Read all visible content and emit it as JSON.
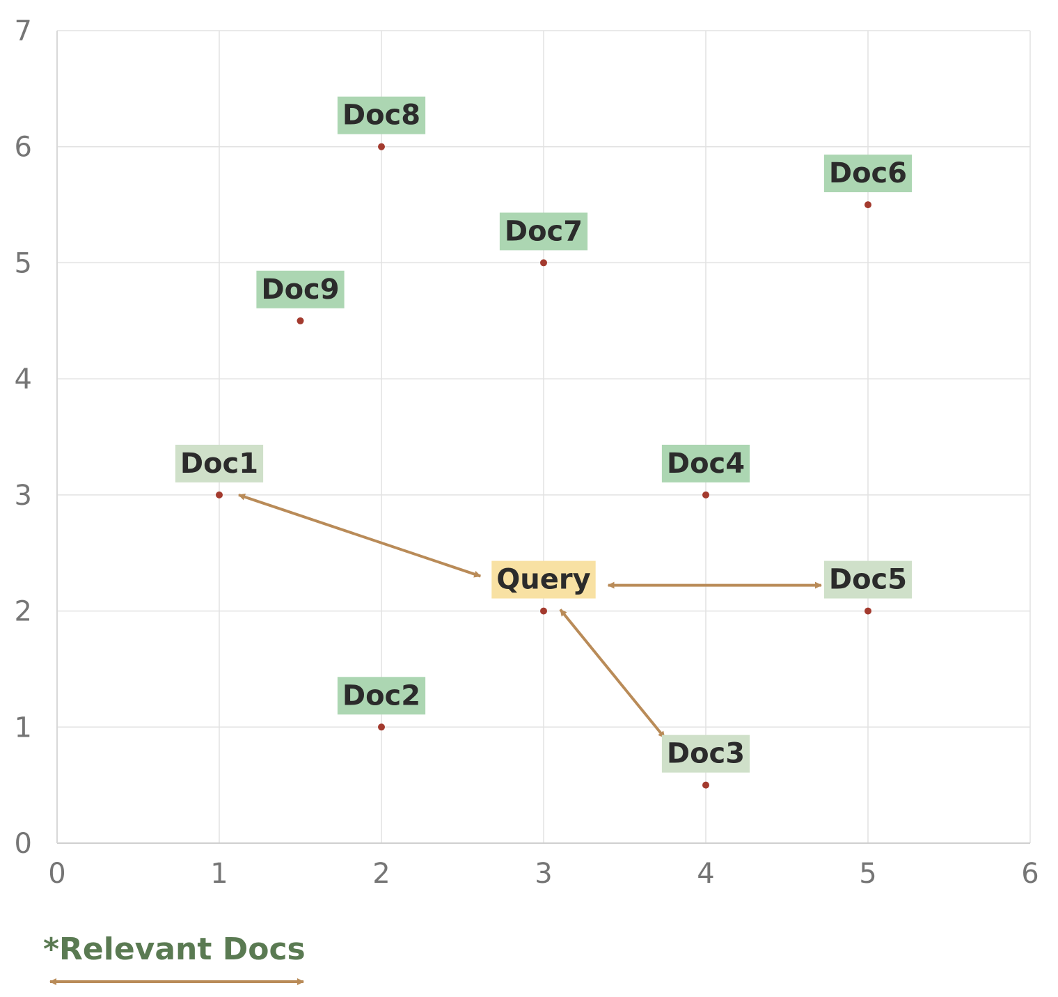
{
  "chart_data": {
    "type": "scatter",
    "title": "",
    "xlabel": "",
    "ylabel": "",
    "xlim": [
      0,
      6
    ],
    "ylim": [
      0,
      7
    ],
    "x_ticks": [
      "0",
      "1",
      "2",
      "3",
      "4",
      "5",
      "6"
    ],
    "y_ticks": [
      "0",
      "1",
      "2",
      "3",
      "4",
      "5",
      "6",
      "7"
    ],
    "grid": true,
    "points": [
      {
        "label": "Doc8",
        "x": 2,
        "y": 6,
        "kind": "doc"
      },
      {
        "label": "Doc6",
        "x": 5,
        "y": 5.5,
        "kind": "doc"
      },
      {
        "label": "Doc7",
        "x": 3,
        "y": 5,
        "kind": "doc"
      },
      {
        "label": "Doc9",
        "x": 1.5,
        "y": 4.5,
        "kind": "doc"
      },
      {
        "label": "Doc1",
        "x": 1,
        "y": 3,
        "kind": "relevant"
      },
      {
        "label": "Doc4",
        "x": 4,
        "y": 3,
        "kind": "doc"
      },
      {
        "label": "Query",
        "x": 3,
        "y": 2,
        "kind": "query"
      },
      {
        "label": "Doc5",
        "x": 5,
        "y": 2,
        "kind": "relevant"
      },
      {
        "label": "Doc2",
        "x": 2,
        "y": 1,
        "kind": "doc"
      },
      {
        "label": "Doc3",
        "x": 4,
        "y": 0.5,
        "kind": "relevant"
      }
    ],
    "arrows": [
      {
        "from": "Query",
        "to": "Doc1"
      },
      {
        "from": "Query",
        "to": "Doc5"
      },
      {
        "from": "Query",
        "to": "Doc3"
      }
    ],
    "legend": {
      "text": "*Relevant Docs",
      "placement": "bottom-left"
    },
    "colors": {
      "point": "#a33a2e",
      "arrow": "#b98b58",
      "doc_label_bg": "#acd6b2",
      "relevant_label_bg": "#cfe0c9",
      "query_label_bg": "#f8e1a3",
      "grid": "#e2e2e2",
      "legend_text": "#5a7a52"
    }
  }
}
